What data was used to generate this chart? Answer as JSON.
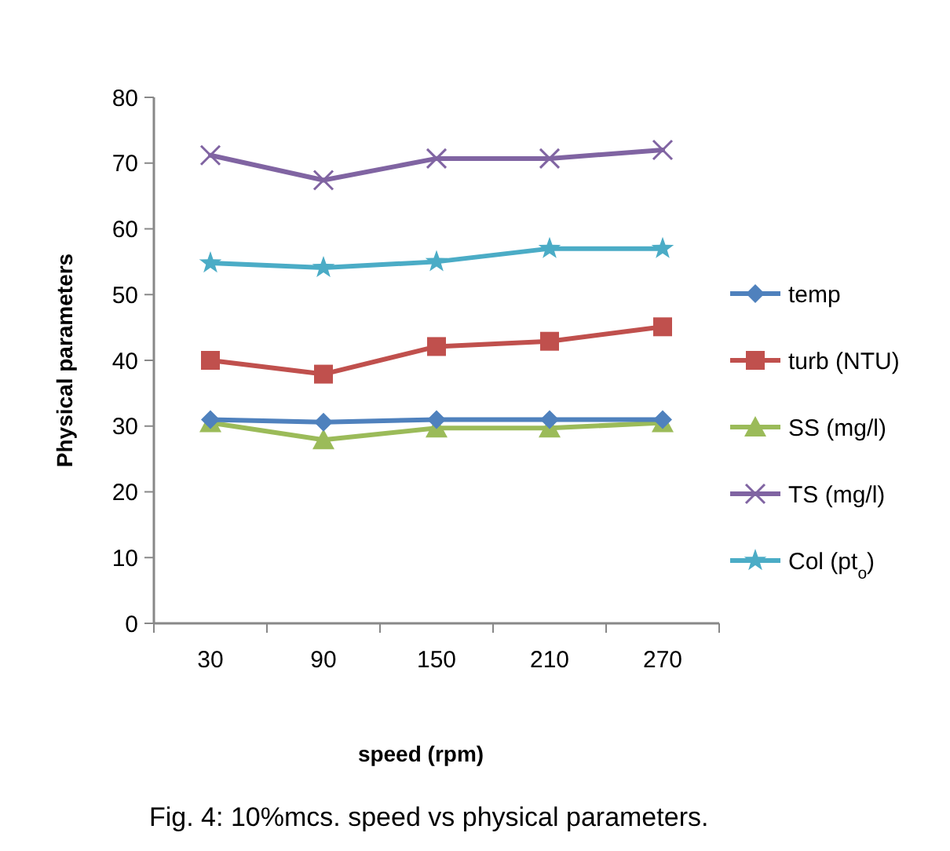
{
  "chart_data": {
    "type": "line",
    "xlabel": "speed (rpm)",
    "ylabel": "Physical parameters",
    "categories": [
      "30",
      "90",
      "150",
      "210",
      "270"
    ],
    "ylim": [
      0,
      80
    ],
    "yticks": [
      0,
      10,
      20,
      30,
      40,
      50,
      60,
      70,
      80
    ],
    "grid": false,
    "legend": "right",
    "line_style": "solid",
    "series": [
      {
        "name": "temp",
        "color": "#4f81bd",
        "marker": "diamond",
        "values": [
          31,
          30.6,
          31,
          31,
          31
        ]
      },
      {
        "name": "turb (NTU)",
        "color": "#c0504d",
        "marker": "square",
        "values": [
          40,
          37.9,
          42.1,
          42.9,
          45.1
        ]
      },
      {
        "name": "SS (mg/l)",
        "color": "#9bbb59",
        "marker": "triangle",
        "values": [
          30.5,
          27.9,
          29.7,
          29.7,
          30.5
        ]
      },
      {
        "name": "TS (mg/l)",
        "color": "#8064a2",
        "marker": "cross",
        "values": [
          71.2,
          67.4,
          70.7,
          70.7,
          72
        ]
      },
      {
        "name": "Col (pt$_{o}$)",
        "color": "#4bacc6",
        "marker": "star",
        "values": [
          54.8,
          54.1,
          55,
          57,
          57
        ]
      }
    ],
    "annotations": [
      "Fig. 4: 10%mcs. speed vs physical parameters."
    ]
  }
}
